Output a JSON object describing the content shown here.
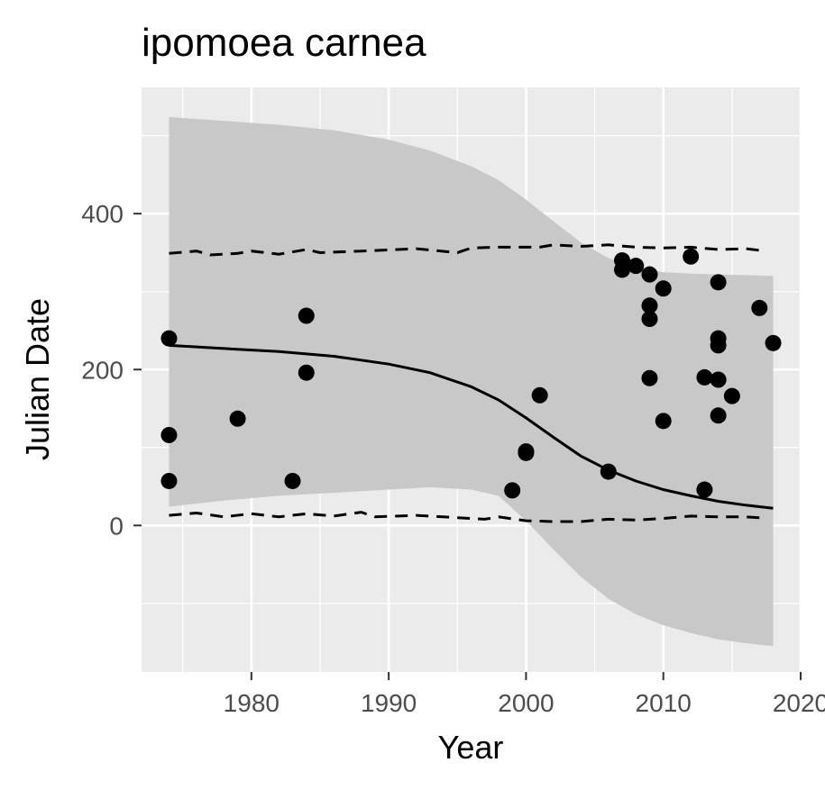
{
  "chart_data": {
    "type": "scatter",
    "title": "ipomoea carnea",
    "xlabel": "Year",
    "ylabel": "Julian Date",
    "xlim": [
      1972,
      2020
    ],
    "ylim": [
      -188,
      562
    ],
    "x_ticks": [
      1980,
      1990,
      2000,
      2010,
      2020
    ],
    "y_ticks": [
      0,
      200,
      400
    ],
    "grid": true,
    "legend": "none",
    "colors": {
      "panel": "#ebebeb",
      "grid": "#ffffff",
      "ribbon": "#c8c8c8",
      "ink": "#000000",
      "tick_text": "#4d4d4d"
    },
    "points": [
      {
        "x": 1974,
        "y": 240
      },
      {
        "x": 1974,
        "y": 116
      },
      {
        "x": 1974,
        "y": 57
      },
      {
        "x": 1979,
        "y": 137
      },
      {
        "x": 1983,
        "y": 57
      },
      {
        "x": 1984,
        "y": 269
      },
      {
        "x": 1984,
        "y": 196
      },
      {
        "x": 1999,
        "y": 45
      },
      {
        "x": 2000,
        "y": 95
      },
      {
        "x": 2000,
        "y": 93
      },
      {
        "x": 2001,
        "y": 167
      },
      {
        "x": 2006,
        "y": 69
      },
      {
        "x": 2007,
        "y": 340
      },
      {
        "x": 2007,
        "y": 328
      },
      {
        "x": 2008,
        "y": 333
      },
      {
        "x": 2009,
        "y": 322
      },
      {
        "x": 2009,
        "y": 282
      },
      {
        "x": 2009,
        "y": 265
      },
      {
        "x": 2009,
        "y": 189
      },
      {
        "x": 2010,
        "y": 304
      },
      {
        "x": 2010,
        "y": 134
      },
      {
        "x": 2012,
        "y": 345
      },
      {
        "x": 2013,
        "y": 190
      },
      {
        "x": 2013,
        "y": 46
      },
      {
        "x": 2014,
        "y": 312
      },
      {
        "x": 2014,
        "y": 240
      },
      {
        "x": 2014,
        "y": 231
      },
      {
        "x": 2014,
        "y": 187
      },
      {
        "x": 2014,
        "y": 141
      },
      {
        "x": 2015,
        "y": 166
      },
      {
        "x": 2017,
        "y": 279
      },
      {
        "x": 2018,
        "y": 234
      }
    ],
    "fit_line": {
      "x": [
        1974,
        1978,
        1982,
        1986,
        1990,
        1993,
        1996,
        1998,
        2000,
        2002,
        2004,
        2006,
        2008,
        2010,
        2012,
        2014,
        2016,
        2018
      ],
      "y": [
        231,
        227,
        223,
        217,
        207,
        196,
        178,
        161,
        138,
        113,
        89,
        71,
        57,
        46,
        38,
        31,
        26,
        22
      ]
    },
    "ribbon": {
      "x": [
        1974,
        1978,
        1982,
        1986,
        1990,
        1993,
        1996,
        1998,
        2000,
        2002,
        2004,
        2006,
        2008,
        2010,
        2012,
        2014,
        2016,
        2018
      ],
      "upper": [
        524,
        519,
        514,
        507,
        495,
        481,
        461,
        443,
        418,
        390,
        363,
        343,
        331,
        325,
        323,
        322,
        321,
        320
      ],
      "lower": [
        24,
        32,
        38,
        42,
        46,
        49,
        46,
        38,
        6,
        -31,
        -66,
        -94,
        -114,
        -128,
        -138,
        -146,
        -151,
        -155
      ]
    },
    "quantile_upper": {
      "x": [
        1974,
        1976,
        1977,
        1979,
        1980,
        1982,
        1984,
        1985,
        1988,
        1992,
        1995,
        1996,
        1998,
        2001,
        2002,
        2004,
        2006,
        2008,
        2010,
        2012,
        2014,
        2016,
        2017
      ],
      "y": [
        349,
        352,
        347,
        349,
        352,
        348,
        354,
        350,
        352,
        355,
        350,
        356,
        357,
        357,
        360,
        358,
        360,
        357,
        356,
        357,
        354,
        355,
        353
      ]
    },
    "quantile_lower": {
      "x": [
        1974,
        1976,
        1978,
        1980,
        1982,
        1984,
        1986,
        1988,
        1989,
        1992,
        1995,
        1997,
        1998,
        2000,
        2002,
        2004,
        2006,
        2008,
        2010,
        2012,
        2014,
        2016,
        2017
      ],
      "y": [
        13,
        16,
        11,
        15,
        11,
        15,
        12,
        17,
        11,
        13,
        10,
        8,
        11,
        6,
        5,
        5,
        8,
        7,
        9,
        12,
        11,
        11,
        10
      ]
    }
  }
}
